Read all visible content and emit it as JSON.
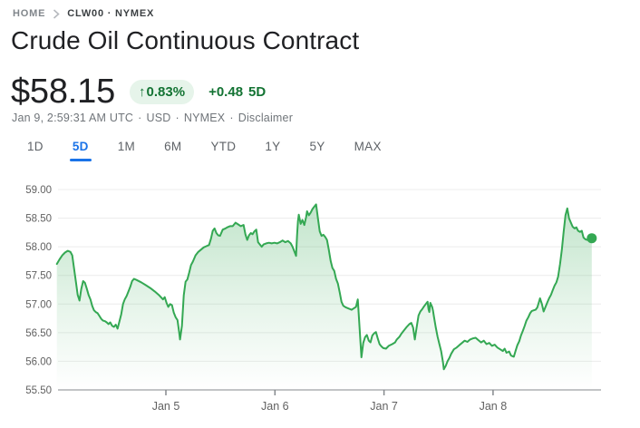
{
  "breadcrumb": {
    "home": "HOME",
    "symbol": "CLW00 · NYMEX"
  },
  "header": {
    "title": "Crude Oil Continuous Contract"
  },
  "quote": {
    "price": "$58.15",
    "arrow": "↑",
    "change_percent": "0.83%",
    "change_absolute": "+0.48",
    "change_period": "5D",
    "meta_parts": [
      "Jan 9, 2:59:31 AM UTC",
      "USD",
      "NYMEX",
      "Disclaimer"
    ],
    "positive_color": "#137333",
    "badge_bg": "#e6f4ea"
  },
  "tabs": {
    "active_color": "#1a73e8",
    "items": [
      {
        "label": "1D",
        "active": false
      },
      {
        "label": "5D",
        "active": true
      },
      {
        "label": "1M",
        "active": false
      },
      {
        "label": "6M",
        "active": false
      },
      {
        "label": "YTD",
        "active": false
      },
      {
        "label": "1Y",
        "active": false
      },
      {
        "label": "5Y",
        "active": false
      },
      {
        "label": "MAX",
        "active": false
      }
    ]
  },
  "chart_data": {
    "type": "area",
    "title": "Crude Oil Continuous Contract — 5 day price (USD)",
    "line_color": "#34a853",
    "fill_color": "#34a853",
    "grid": true,
    "y_axis": {
      "ticks": [
        59.0,
        58.5,
        58.0,
        57.5,
        57.0,
        56.5,
        56.0,
        55.5
      ],
      "min": 55.5,
      "max": 59.0
    },
    "x_axis": {
      "tick_labels": [
        "Jan 5",
        "Jan 6",
        "Jan 7",
        "Jan 8"
      ],
      "tick_t": [
        1,
        2,
        3,
        4
      ],
      "note": "t in trading days from chart start (Jan 4)"
    },
    "end_marker": {
      "t": 4.905,
      "price": 58.15
    },
    "points": [
      [
        0,
        57.7
      ],
      [
        0.025,
        57.78
      ],
      [
        0.05,
        57.85
      ],
      [
        0.075,
        57.9
      ],
      [
        0.1,
        57.93
      ],
      [
        0.125,
        57.91
      ],
      [
        0.141,
        57.85
      ],
      [
        0.158,
        57.62
      ],
      [
        0.175,
        57.38
      ],
      [
        0.191,
        57.16
      ],
      [
        0.208,
        57.06
      ],
      [
        0.224,
        57.26
      ],
      [
        0.241,
        57.4
      ],
      [
        0.258,
        57.37
      ],
      [
        0.274,
        57.27
      ],
      [
        0.291,
        57.16
      ],
      [
        0.308,
        57.08
      ],
      [
        0.324,
        56.97
      ],
      [
        0.341,
        56.89
      ],
      [
        0.357,
        56.86
      ],
      [
        0.374,
        56.84
      ],
      [
        0.391,
        56.79
      ],
      [
        0.407,
        56.74
      ],
      [
        0.424,
        56.71
      ],
      [
        0.441,
        56.7
      ],
      [
        0.457,
        56.68
      ],
      [
        0.474,
        56.65
      ],
      [
        0.49,
        56.68
      ],
      [
        0.507,
        56.62
      ],
      [
        0.524,
        56.6
      ],
      [
        0.54,
        56.64
      ],
      [
        0.557,
        56.57
      ],
      [
        0.574,
        56.7
      ],
      [
        0.59,
        56.82
      ],
      [
        0.607,
        57.0
      ],
      [
        0.623,
        57.08
      ],
      [
        0.64,
        57.14
      ],
      [
        0.657,
        57.22
      ],
      [
        0.673,
        57.3
      ],
      [
        0.69,
        57.4
      ],
      [
        0.707,
        57.44
      ],
      [
        0.732,
        57.42
      ],
      [
        0.773,
        57.38
      ],
      [
        0.815,
        57.33
      ],
      [
        0.856,
        57.28
      ],
      [
        0.898,
        57.22
      ],
      [
        0.939,
        57.15
      ],
      [
        0.973,
        57.08
      ],
      [
        0.989,
        57.12
      ],
      [
        1.006,
        57.02
      ],
      [
        1.022,
        56.95
      ],
      [
        1.039,
        57.0
      ],
      [
        1.056,
        56.98
      ],
      [
        1.072,
        56.85
      ],
      [
        1.089,
        56.77
      ],
      [
        1.106,
        56.72
      ],
      [
        1.122,
        56.5
      ],
      [
        1.13,
        56.38
      ],
      [
        1.147,
        56.62
      ],
      [
        1.164,
        57.15
      ],
      [
        1.18,
        57.39
      ],
      [
        1.197,
        57.43
      ],
      [
        1.214,
        57.55
      ],
      [
        1.23,
        57.68
      ],
      [
        1.247,
        57.74
      ],
      [
        1.272,
        57.85
      ],
      [
        1.297,
        57.91
      ],
      [
        1.322,
        57.95
      ],
      [
        1.347,
        57.99
      ],
      [
        1.371,
        58.01
      ],
      [
        1.396,
        58.03
      ],
      [
        1.413,
        58.14
      ],
      [
        1.43,
        58.28
      ],
      [
        1.446,
        58.32
      ],
      [
        1.463,
        58.24
      ],
      [
        1.48,
        58.2
      ],
      [
        1.496,
        58.19
      ],
      [
        1.521,
        58.3
      ],
      [
        1.546,
        58.32
      ],
      [
        1.563,
        58.34
      ],
      [
        1.588,
        58.36
      ],
      [
        1.613,
        58.36
      ],
      [
        1.638,
        58.42
      ],
      [
        1.663,
        58.39
      ],
      [
        1.687,
        58.36
      ],
      [
        1.712,
        58.38
      ],
      [
        1.729,
        58.22
      ],
      [
        1.746,
        58.12
      ],
      [
        1.762,
        58.2
      ],
      [
        1.779,
        58.24
      ],
      [
        1.795,
        58.22
      ],
      [
        1.812,
        58.27
      ],
      [
        1.829,
        58.3
      ],
      [
        1.845,
        58.08
      ],
      [
        1.862,
        58.04
      ],
      [
        1.879,
        58.0
      ],
      [
        1.895,
        58.04
      ],
      [
        1.92,
        58.06
      ],
      [
        1.945,
        58.07
      ],
      [
        1.97,
        58.06
      ],
      [
        1.995,
        58.07
      ],
      [
        2.02,
        58.06
      ],
      [
        2.045,
        58.08
      ],
      [
        2.07,
        58.11
      ],
      [
        2.095,
        58.08
      ],
      [
        2.12,
        58.1
      ],
      [
        2.145,
        58.06
      ],
      [
        2.161,
        58.0
      ],
      [
        2.178,
        57.92
      ],
      [
        2.194,
        57.84
      ],
      [
        2.203,
        58.2
      ],
      [
        2.211,
        58.45
      ],
      [
        2.219,
        58.56
      ],
      [
        2.236,
        58.4
      ],
      [
        2.252,
        58.47
      ],
      [
        2.269,
        58.38
      ],
      [
        2.286,
        58.52
      ],
      [
        2.294,
        58.62
      ],
      [
        2.311,
        58.55
      ],
      [
        2.328,
        58.6
      ],
      [
        2.344,
        58.66
      ],
      [
        2.361,
        58.7
      ],
      [
        2.377,
        58.74
      ],
      [
        2.394,
        58.5
      ],
      [
        2.411,
        58.27
      ],
      [
        2.427,
        58.19
      ],
      [
        2.444,
        58.21
      ],
      [
        2.461,
        58.17
      ],
      [
        2.477,
        58.12
      ],
      [
        2.494,
        57.95
      ],
      [
        2.511,
        57.75
      ],
      [
        2.527,
        57.63
      ],
      [
        2.544,
        57.58
      ],
      [
        2.56,
        57.44
      ],
      [
        2.577,
        57.36
      ],
      [
        2.594,
        57.2
      ],
      [
        2.61,
        57.04
      ],
      [
        2.627,
        56.97
      ],
      [
        2.652,
        56.94
      ],
      [
        2.677,
        56.92
      ],
      [
        2.702,
        56.9
      ],
      [
        2.727,
        56.93
      ],
      [
        2.743,
        56.95
      ],
      [
        2.76,
        57.08
      ],
      [
        2.777,
        56.55
      ],
      [
        2.793,
        56.07
      ],
      [
        2.81,
        56.32
      ],
      [
        2.826,
        56.42
      ],
      [
        2.843,
        56.46
      ],
      [
        2.86,
        56.36
      ],
      [
        2.876,
        56.33
      ],
      [
        2.893,
        56.45
      ],
      [
        2.91,
        56.49
      ],
      [
        2.926,
        56.51
      ],
      [
        2.943,
        56.4
      ],
      [
        2.959,
        56.3
      ],
      [
        2.976,
        56.26
      ],
      [
        2.993,
        56.23
      ],
      [
        3.018,
        56.22
      ],
      [
        3.043,
        56.27
      ],
      [
        3.076,
        56.3
      ],
      [
        3.101,
        56.33
      ],
      [
        3.117,
        56.38
      ],
      [
        3.142,
        56.43
      ],
      [
        3.159,
        56.48
      ],
      [
        3.184,
        56.54
      ],
      [
        3.209,
        56.6
      ],
      [
        3.233,
        56.65
      ],
      [
        3.25,
        56.67
      ],
      [
        3.267,
        56.59
      ],
      [
        3.283,
        56.38
      ],
      [
        3.3,
        56.6
      ],
      [
        3.317,
        56.8
      ],
      [
        3.333,
        56.87
      ],
      [
        3.35,
        56.91
      ],
      [
        3.367,
        56.96
      ],
      [
        3.383,
        57.0
      ],
      [
        3.4,
        57.04
      ],
      [
        3.408,
        56.91
      ],
      [
        3.416,
        56.86
      ],
      [
        3.425,
        57.02
      ],
      [
        3.441,
        56.95
      ],
      [
        3.45,
        56.88
      ],
      [
        3.458,
        56.78
      ],
      [
        3.474,
        56.6
      ],
      [
        3.491,
        56.43
      ],
      [
        3.508,
        56.3
      ],
      [
        3.524,
        56.18
      ],
      [
        3.541,
        55.98
      ],
      [
        3.549,
        55.86
      ],
      [
        3.566,
        55.92
      ],
      [
        3.583,
        56.0
      ],
      [
        3.6,
        56.06
      ],
      [
        3.616,
        56.13
      ],
      [
        3.641,
        56.21
      ],
      [
        3.666,
        56.24
      ],
      [
        3.69,
        56.28
      ],
      [
        3.715,
        56.32
      ],
      [
        3.74,
        56.36
      ],
      [
        3.765,
        56.34
      ],
      [
        3.79,
        56.38
      ],
      [
        3.815,
        56.4
      ],
      [
        3.84,
        56.41
      ],
      [
        3.865,
        56.37
      ],
      [
        3.89,
        56.33
      ],
      [
        3.915,
        56.36
      ],
      [
        3.94,
        56.3
      ],
      [
        3.965,
        56.32
      ],
      [
        3.99,
        56.27
      ],
      [
        4.015,
        56.29
      ],
      [
        4.04,
        56.24
      ],
      [
        4.065,
        56.21
      ],
      [
        4.09,
        56.18
      ],
      [
        4.106,
        56.22
      ],
      [
        4.123,
        56.15
      ],
      [
        4.148,
        56.17
      ],
      [
        4.165,
        56.1
      ],
      [
        4.19,
        56.08
      ],
      [
        4.206,
        56.18
      ],
      [
        4.223,
        56.28
      ],
      [
        4.24,
        56.35
      ],
      [
        4.256,
        56.45
      ],
      [
        4.273,
        56.53
      ],
      [
        4.29,
        56.62
      ],
      [
        4.306,
        56.71
      ],
      [
        4.323,
        56.77
      ],
      [
        4.34,
        56.84
      ],
      [
        4.356,
        56.88
      ],
      [
        4.373,
        56.89
      ],
      [
        4.39,
        56.9
      ],
      [
        4.406,
        56.94
      ],
      [
        4.423,
        57.05
      ],
      [
        4.431,
        57.1
      ],
      [
        4.448,
        57.0
      ],
      [
        4.464,
        56.87
      ],
      [
        4.481,
        56.95
      ],
      [
        4.498,
        57.03
      ],
      [
        4.514,
        57.1
      ],
      [
        4.531,
        57.16
      ],
      [
        4.547,
        57.24
      ],
      [
        4.564,
        57.32
      ],
      [
        4.581,
        57.38
      ],
      [
        4.597,
        57.48
      ],
      [
        4.614,
        57.7
      ],
      [
        4.631,
        57.95
      ],
      [
        4.647,
        58.25
      ],
      [
        4.664,
        58.55
      ],
      [
        4.681,
        58.67
      ],
      [
        4.697,
        58.5
      ],
      [
        4.714,
        58.42
      ],
      [
        4.73,
        58.35
      ],
      [
        4.747,
        58.32
      ],
      [
        4.764,
        58.34
      ],
      [
        4.78,
        58.28
      ],
      [
        4.797,
        58.26
      ],
      [
        4.814,
        58.28
      ],
      [
        4.83,
        58.16
      ],
      [
        4.847,
        58.13
      ],
      [
        4.863,
        58.12
      ],
      [
        4.88,
        58.17
      ],
      [
        4.905,
        58.15
      ]
    ]
  }
}
